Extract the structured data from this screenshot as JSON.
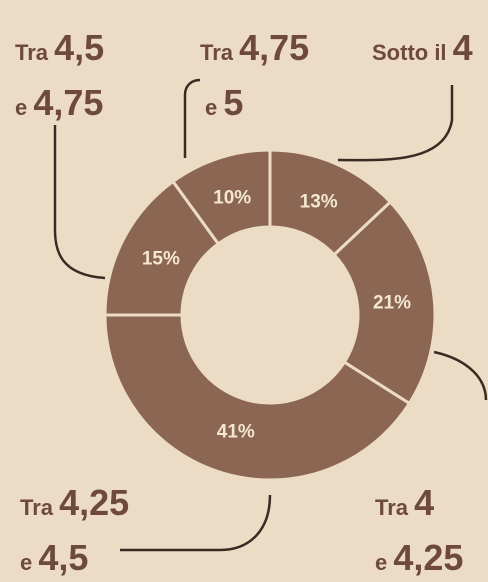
{
  "chart_data": {
    "type": "pie",
    "donut": true,
    "categories": [
      [
        "Sotto il 4"
      ],
      [
        "Tra 4",
        "e 4,25"
      ],
      [
        "Tra 4,25",
        "e 4,5"
      ],
      [
        "Tra 4,5",
        "e 4,75"
      ],
      [
        "Tra 4,75",
        "e 5"
      ]
    ],
    "values": [
      13,
      21,
      41,
      15,
      10
    ],
    "value_labels": [
      "13%",
      "21%",
      "41%",
      "15%",
      "10%"
    ],
    "color": "#8b6753"
  }
}
